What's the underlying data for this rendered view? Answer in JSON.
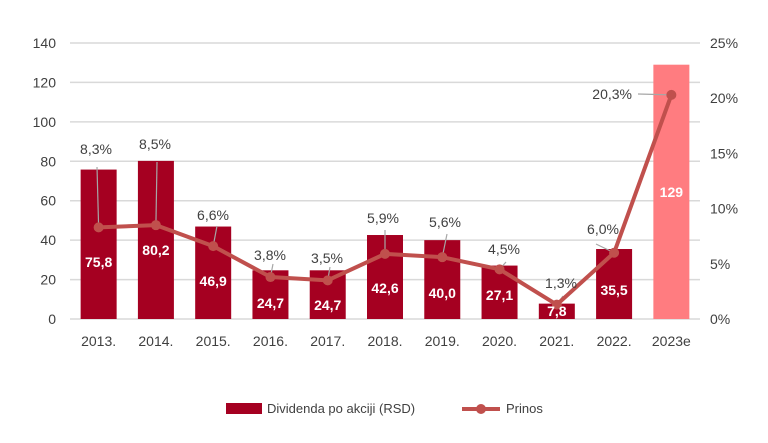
{
  "chart_data": {
    "type": "bar+line",
    "categories": [
      "2013.",
      "2014.",
      "2015.",
      "2016.",
      "2017.",
      "2018.",
      "2019.",
      "2020.",
      "2021.",
      "2022.",
      "2023e"
    ],
    "series": [
      {
        "name": "Dividenda po akciji (RSD)",
        "type": "bar",
        "axis": "left",
        "values": [
          75.8,
          80.2,
          46.9,
          24.7,
          24.7,
          42.6,
          40.0,
          27.1,
          7.8,
          35.5,
          129
        ],
        "labels": [
          "75,8",
          "80,2",
          "46,9",
          "24,7",
          "24,7",
          "42,6",
          "40,0",
          "27,1",
          "7,8",
          "35,5",
          "129"
        ],
        "color": "#A50021",
        "highlight_color": "#FF7C80",
        "highlight_index": 10
      },
      {
        "name": "Prinos",
        "type": "line",
        "axis": "right",
        "values": [
          8.3,
          8.5,
          6.6,
          3.8,
          3.5,
          5.9,
          5.6,
          4.5,
          1.3,
          6.0,
          20.3
        ],
        "labels": [
          "8,3%",
          "8,5%",
          "6,6%",
          "3,8%",
          "3,5%",
          "5,9%",
          "5,6%",
          "4,5%",
          "1,3%",
          "6,0%",
          "20,3%"
        ],
        "color": "#C0504D"
      }
    ],
    "left_axis": {
      "ylim": [
        0,
        140
      ],
      "ticks": [
        "0",
        "20",
        "40",
        "60",
        "80",
        "100",
        "120",
        "140"
      ]
    },
    "right_axis": {
      "ylim": [
        0,
        25
      ],
      "ticks": [
        "0%",
        "5%",
        "10%",
        "15%",
        "20%",
        "25%"
      ]
    },
    "grid": true,
    "legend": "bottom"
  }
}
